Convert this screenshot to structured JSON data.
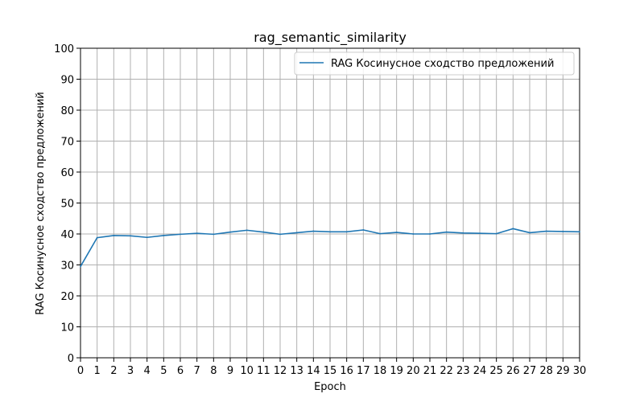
{
  "chart_data": {
    "type": "line",
    "title": "rag_semantic_similarity",
    "xlabel": "Epoch",
    "ylabel": "RAG Косинусное сходство предложений",
    "xlim": [
      0,
      30
    ],
    "ylim": [
      0,
      100
    ],
    "grid": true,
    "legend_position": "top-right",
    "x_ticks": [
      "0",
      "1",
      "2",
      "3",
      "4",
      "5",
      "6",
      "7",
      "8",
      "9",
      "10",
      "11",
      "12",
      "13",
      "14",
      "15",
      "16",
      "17",
      "18",
      "19",
      "20",
      "21",
      "22",
      "23",
      "24",
      "25",
      "26",
      "27",
      "28",
      "29",
      "30"
    ],
    "y_ticks": [
      "0",
      "10",
      "20",
      "30",
      "40",
      "50",
      "60",
      "70",
      "80",
      "90",
      "100"
    ],
    "series": [
      {
        "name": "RAG Косинусное сходство предложений",
        "color": "#1f77b4",
        "x": [
          0,
          1,
          2,
          3,
          4,
          5,
          6,
          7,
          8,
          9,
          10,
          11,
          12,
          13,
          14,
          15,
          16,
          17,
          18,
          19,
          20,
          21,
          22,
          23,
          24,
          25,
          26,
          27,
          28,
          29,
          30
        ],
        "y": [
          29.5,
          38.8,
          39.5,
          39.4,
          38.9,
          39.5,
          39.9,
          40.2,
          39.9,
          40.6,
          41.2,
          40.6,
          39.9,
          40.4,
          40.9,
          40.7,
          40.7,
          41.3,
          40.1,
          40.5,
          40.0,
          40.0,
          40.6,
          40.3,
          40.2,
          40.1,
          41.7,
          40.4,
          40.9,
          40.8,
          40.7
        ]
      }
    ]
  }
}
